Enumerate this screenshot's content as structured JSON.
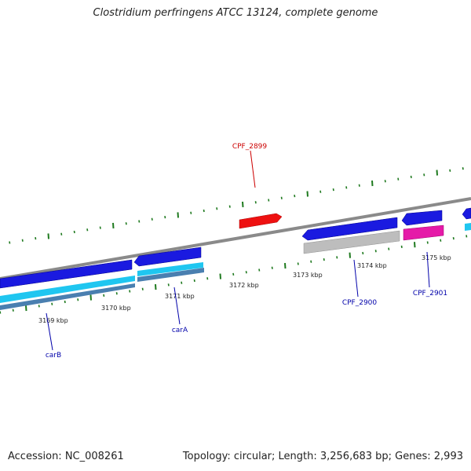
{
  "title": "Clostridium perfringens ATCC 13124, complete genome",
  "footer": {
    "accession": "Accession: NC_008261",
    "summary": "Topology: circular; Length: 3,256,683 bp; Genes: 2,993"
  },
  "kbp_ticks": [
    "3169 kbp",
    "3170 kbp",
    "3171 kbp",
    "3172 kbp",
    "3173 kbp",
    "3174 kbp",
    "3175 kbp"
  ],
  "gene_labels": {
    "CPF_2899": "CPF_2899",
    "CPF_2900": "CPF_2900",
    "CPF_2901": "CPF_2901",
    "carA": "carA",
    "carB": "carB"
  },
  "colors": {
    "backbone": "#8a8a8a",
    "forward_cds": "#ee1111",
    "reverse_cds": "#1a1ae0",
    "light_track": "#1fc6f0",
    "steel_track": "#4a7fb0",
    "grey_track": "#bdbdbd",
    "magenta_track": "#e51aa8",
    "tick_green": "#1f7a1f",
    "label_red": "#cc0000",
    "label_blue": "#0000aa"
  }
}
